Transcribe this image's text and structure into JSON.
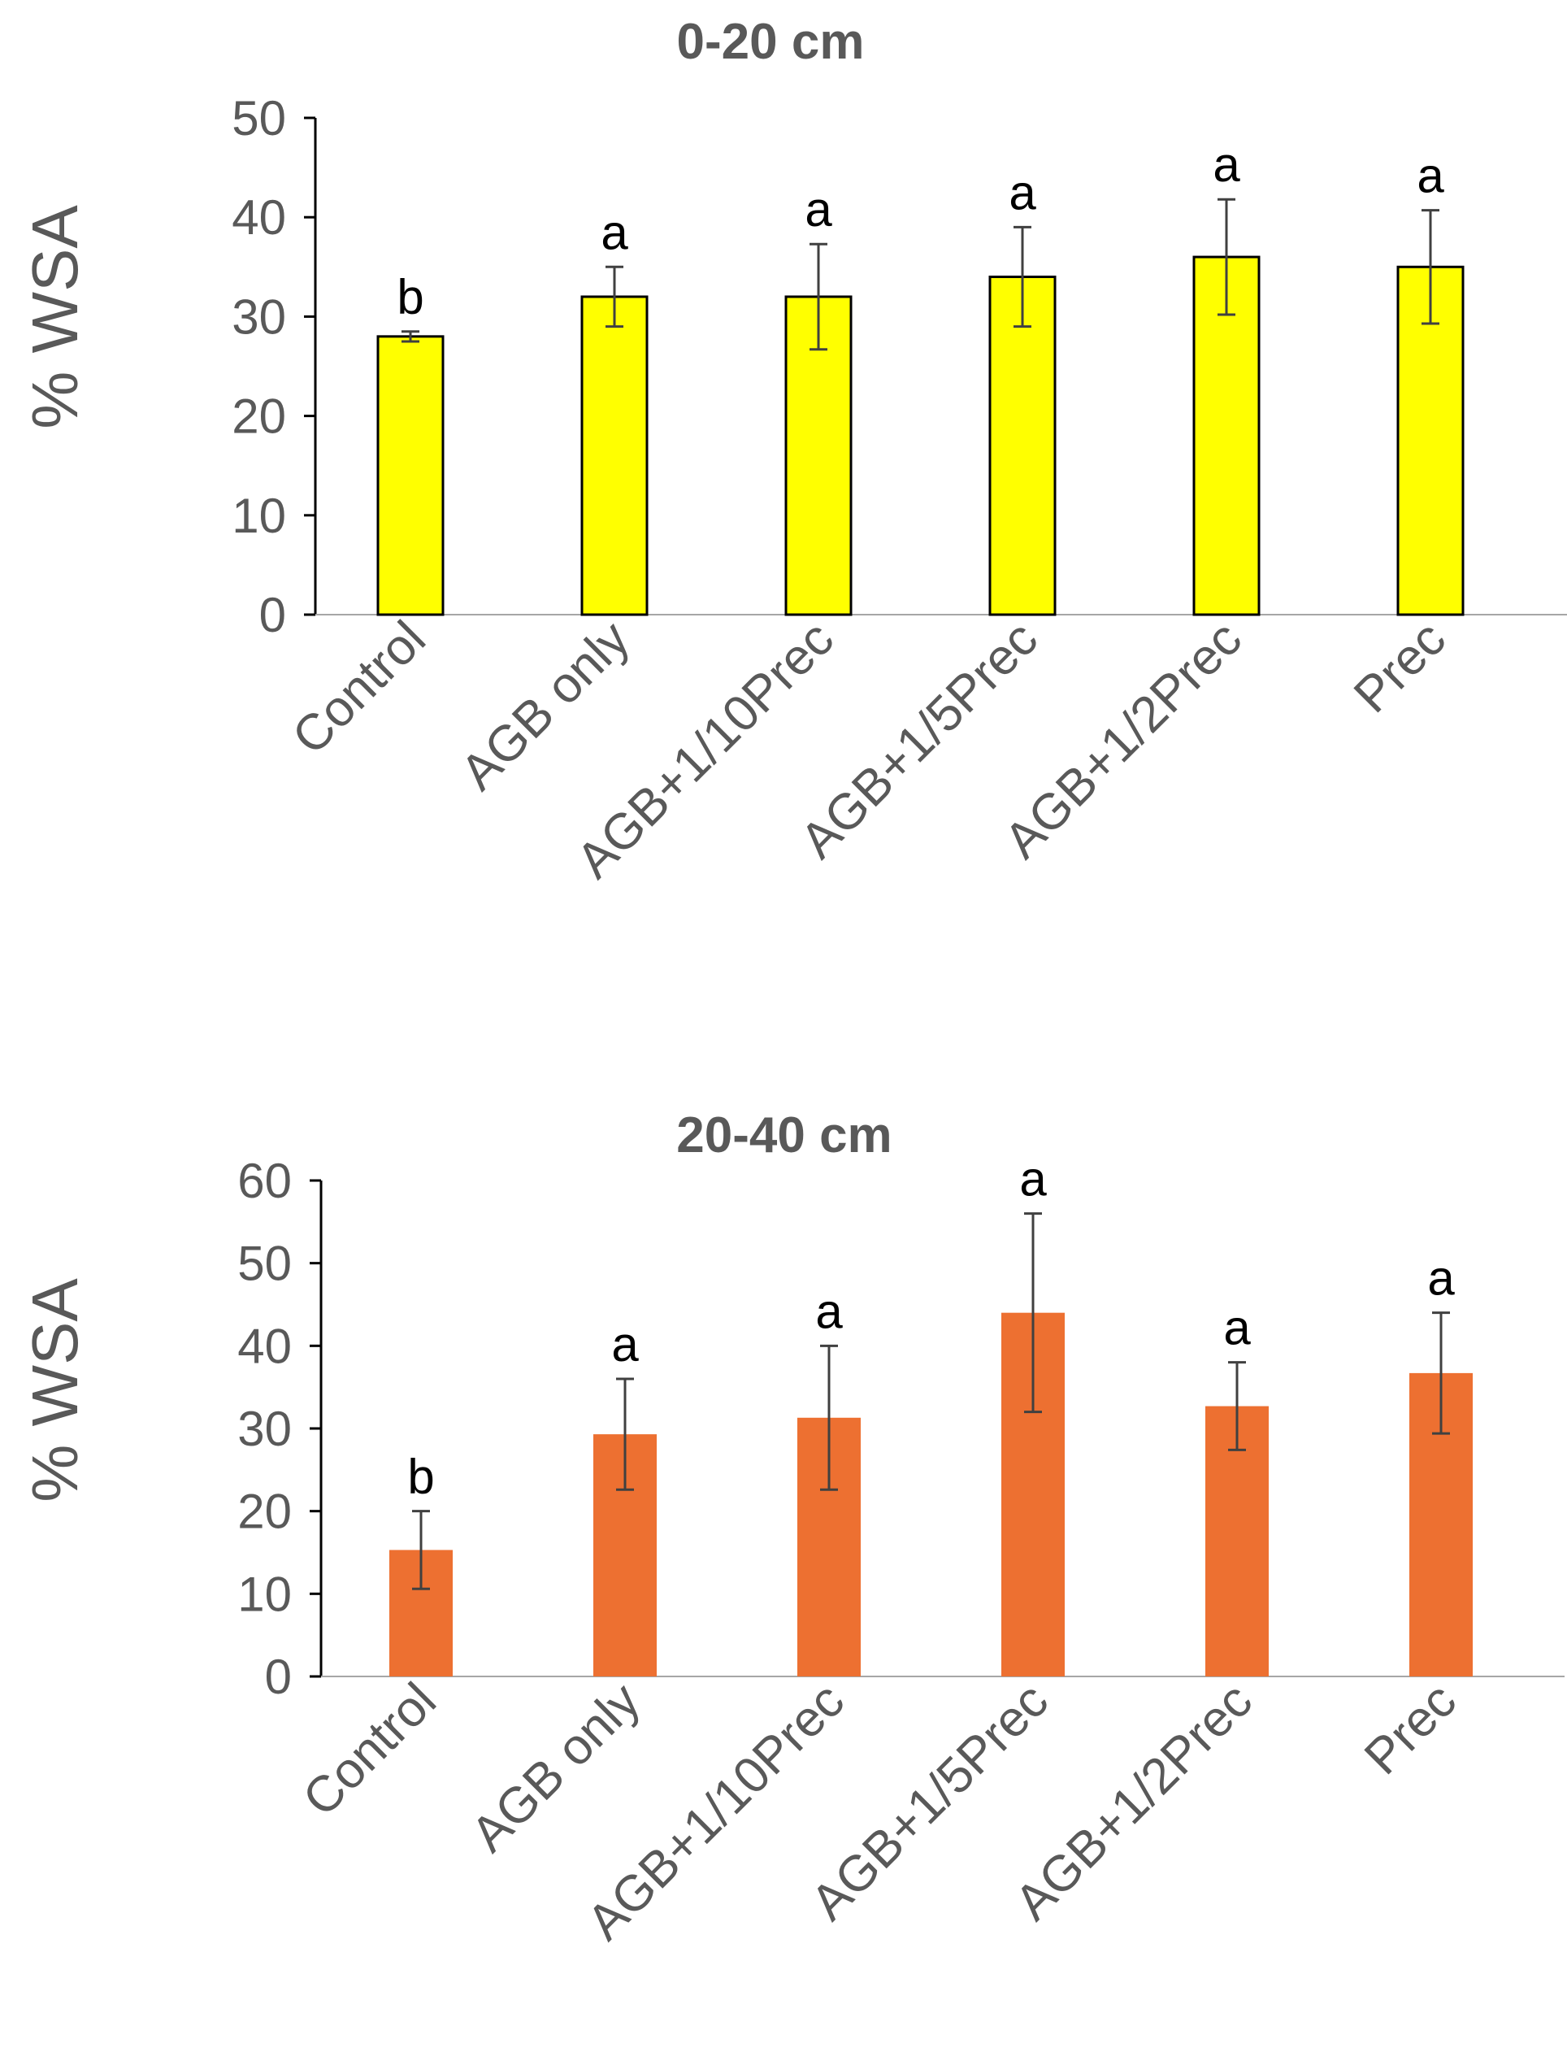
{
  "chart_data": [
    {
      "type": "bar",
      "title": "0-20 cm",
      "xlabel": "",
      "ylabel": "% WSA",
      "ylim": [
        0,
        50
      ],
      "yticks": [
        0,
        10,
        20,
        30,
        40,
        50
      ],
      "categories": [
        "Control",
        "AGB only",
        "AGB+1/10Prec",
        "AGB+1/5Prec",
        "AGB+1/2Prec",
        "Prec"
      ],
      "values": [
        28,
        32,
        32,
        34,
        36,
        35
      ],
      "errors": [
        0.5,
        3,
        5.3,
        5,
        5.8,
        5.7
      ],
      "significance": [
        "b",
        "a",
        "a",
        "a",
        "a",
        "a"
      ],
      "bar_color": "#FFFF00",
      "bar_edge_color": "#000000",
      "error_color": "#404040",
      "grid": false
    },
    {
      "type": "bar",
      "title": "20-40 cm",
      "xlabel": "",
      "ylabel": "% WSA",
      "ylim": [
        0,
        60
      ],
      "yticks": [
        0,
        10,
        20,
        30,
        40,
        50,
        60
      ],
      "categories": [
        "Control",
        "AGB only",
        "AGB+1/10Prec",
        "AGB+1/5Prec",
        "AGB+1/2Prec",
        "Prec"
      ],
      "values": [
        15.3,
        29.3,
        31.3,
        44,
        32.7,
        36.7
      ],
      "errors": [
        4.7,
        6.7,
        8.7,
        12,
        5.3,
        7.3
      ],
      "significance": [
        "b",
        "a",
        "a",
        "a",
        "a",
        "a"
      ],
      "bar_color": "#ED7031",
      "bar_edge_color": "none",
      "error_color": "#404040",
      "grid": false
    }
  ]
}
